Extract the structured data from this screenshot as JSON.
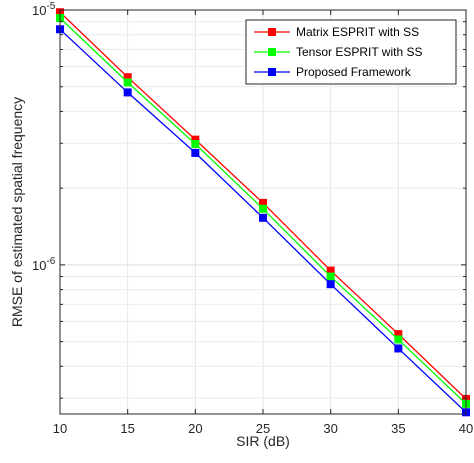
{
  "chart_data": {
    "type": "line",
    "xlabel": "SIR (dB)",
    "ylabel": "RMSE of estimated spatial frequency",
    "xlim": [
      10,
      40
    ],
    "ylim": [
      2.6e-07,
      1e-05
    ],
    "yscale": "log",
    "grid": true,
    "legend_position": "top-right",
    "x": [
      10,
      15,
      20,
      25,
      30,
      35,
      40
    ],
    "x_tick_labels": [
      "10",
      "15",
      "20",
      "25",
      "30",
      "35",
      "40"
    ],
    "y_ticks": [
      {
        "value": 1e-06,
        "base": "10",
        "exponent": "-6"
      },
      {
        "value": 1e-05,
        "base": "10",
        "exponent": "-5"
      }
    ],
    "series": [
      {
        "name": "Matrix ESPRIT with SS",
        "color": "#ff0000",
        "values": [
          9.8e-06,
          5.45e-06,
          3.1e-06,
          1.75e-06,
          9.5e-07,
          5.35e-07,
          2.98e-07
        ]
      },
      {
        "name": "Tensor ESPRIT with SS",
        "color": "#00ff00",
        "values": [
          9.3e-06,
          5.2e-06,
          2.98e-06,
          1.66e-06,
          9e-07,
          5.1e-07,
          2.85e-07
        ]
      },
      {
        "name": "Proposed Framework",
        "color": "#0000ff",
        "values": [
          8.4e-06,
          4.75e-06,
          2.75e-06,
          1.53e-06,
          8.4e-07,
          4.7e-07,
          2.64e-07
        ]
      }
    ]
  }
}
